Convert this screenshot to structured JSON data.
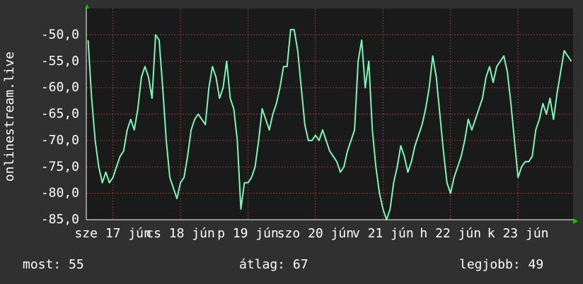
{
  "chart_data": {
    "type": "line",
    "ylabel": "onlinestream.live",
    "categories": [
      null,
      null,
      null,
      null,
      null,
      null,
      null,
      "sze 17 jún",
      null,
      null,
      null,
      null,
      null,
      null,
      null,
      null,
      null,
      null,
      null,
      null,
      null,
      null,
      null,
      null,
      null,
      null,
      "cs 18 jún",
      null,
      null,
      null,
      null,
      null,
      null,
      null,
      null,
      null,
      null,
      null,
      null,
      null,
      null,
      null,
      null,
      null,
      null,
      "p 19 jún",
      null,
      null,
      null,
      null,
      null,
      null,
      null,
      null,
      null,
      null,
      null,
      null,
      null,
      null,
      null,
      null,
      null,
      null,
      "szo 20 jún",
      null,
      null,
      null,
      null,
      null,
      null,
      null,
      null,
      null,
      null,
      null,
      null,
      null,
      null,
      null,
      null,
      null,
      null,
      "v 21 jún",
      null,
      null,
      null,
      null,
      null,
      null,
      null,
      null,
      null,
      null,
      null,
      null,
      null,
      null,
      null,
      null,
      null,
      null,
      "h 22 jún",
      null,
      null,
      null,
      null,
      null,
      null,
      null,
      null,
      null,
      null,
      null,
      null,
      null,
      null,
      null,
      null,
      null,
      null,
      "k 23 jún",
      null,
      null,
      null,
      null,
      null,
      null,
      null,
      null,
      null,
      null,
      null,
      null,
      null,
      null,
      null
    ],
    "series": [
      {
        "color": "#7ff5b8",
        "values": [
          -51,
          -62,
          -70,
          -75,
          -78,
          -76,
          -78,
          -77,
          -75,
          -73,
          -72,
          -68,
          -66,
          -68,
          -64,
          -58,
          -56,
          -58,
          -62,
          -50,
          -51,
          -60,
          -70,
          -77,
          -79,
          -81,
          -78,
          -77,
          -73,
          -68,
          -66,
          -65,
          -66,
          -67,
          -60,
          -56,
          -58,
          -62,
          -60,
          -55,
          -62,
          -64,
          -70,
          -83,
          -78,
          -78,
          -77,
          -75,
          -70,
          -64,
          -66,
          -68,
          -65,
          -63,
          -60,
          -56,
          -56,
          -49,
          -49,
          -53,
          -60,
          -67,
          -70,
          -70,
          -69,
          -70,
          -68,
          -70,
          -72,
          -73,
          -74,
          -76,
          -75,
          -72,
          -70,
          -68,
          -55,
          -51,
          -60,
          -55,
          -68,
          -75,
          -80,
          -83,
          -85,
          -83,
          -78,
          -75,
          -71,
          -73,
          -76,
          -74,
          -71,
          -69,
          -67,
          -64,
          -60,
          -54,
          -58,
          -65,
          -72,
          -78,
          -80,
          -77,
          -75,
          -73,
          -70,
          -66,
          -68,
          -66,
          -64,
          -62,
          -58,
          -56,
          -59,
          -56,
          -55,
          -54,
          -57,
          -63,
          -70,
          -77,
          -75,
          -74,
          -74,
          -73,
          -68,
          -66,
          -63,
          -65,
          -62,
          -66,
          -61,
          -57,
          -53,
          -54,
          -55
        ]
      }
    ],
    "ylim": [
      -85,
      -45
    ],
    "yticks": [
      {
        "value": -85,
        "label": "-85,0"
      },
      {
        "value": -80,
        "label": "-80,0"
      },
      {
        "value": -75,
        "label": "-75,0"
      },
      {
        "value": -70,
        "label": "-70,0"
      },
      {
        "value": -65,
        "label": "-65,0"
      },
      {
        "value": -60,
        "label": "-60,0"
      },
      {
        "value": -55,
        "label": "-55,0"
      },
      {
        "value": -50,
        "label": "-50,0"
      }
    ],
    "grid": true,
    "stats": [
      "most: 55",
      "átlag: 67",
      "legjobb: 49"
    ]
  }
}
